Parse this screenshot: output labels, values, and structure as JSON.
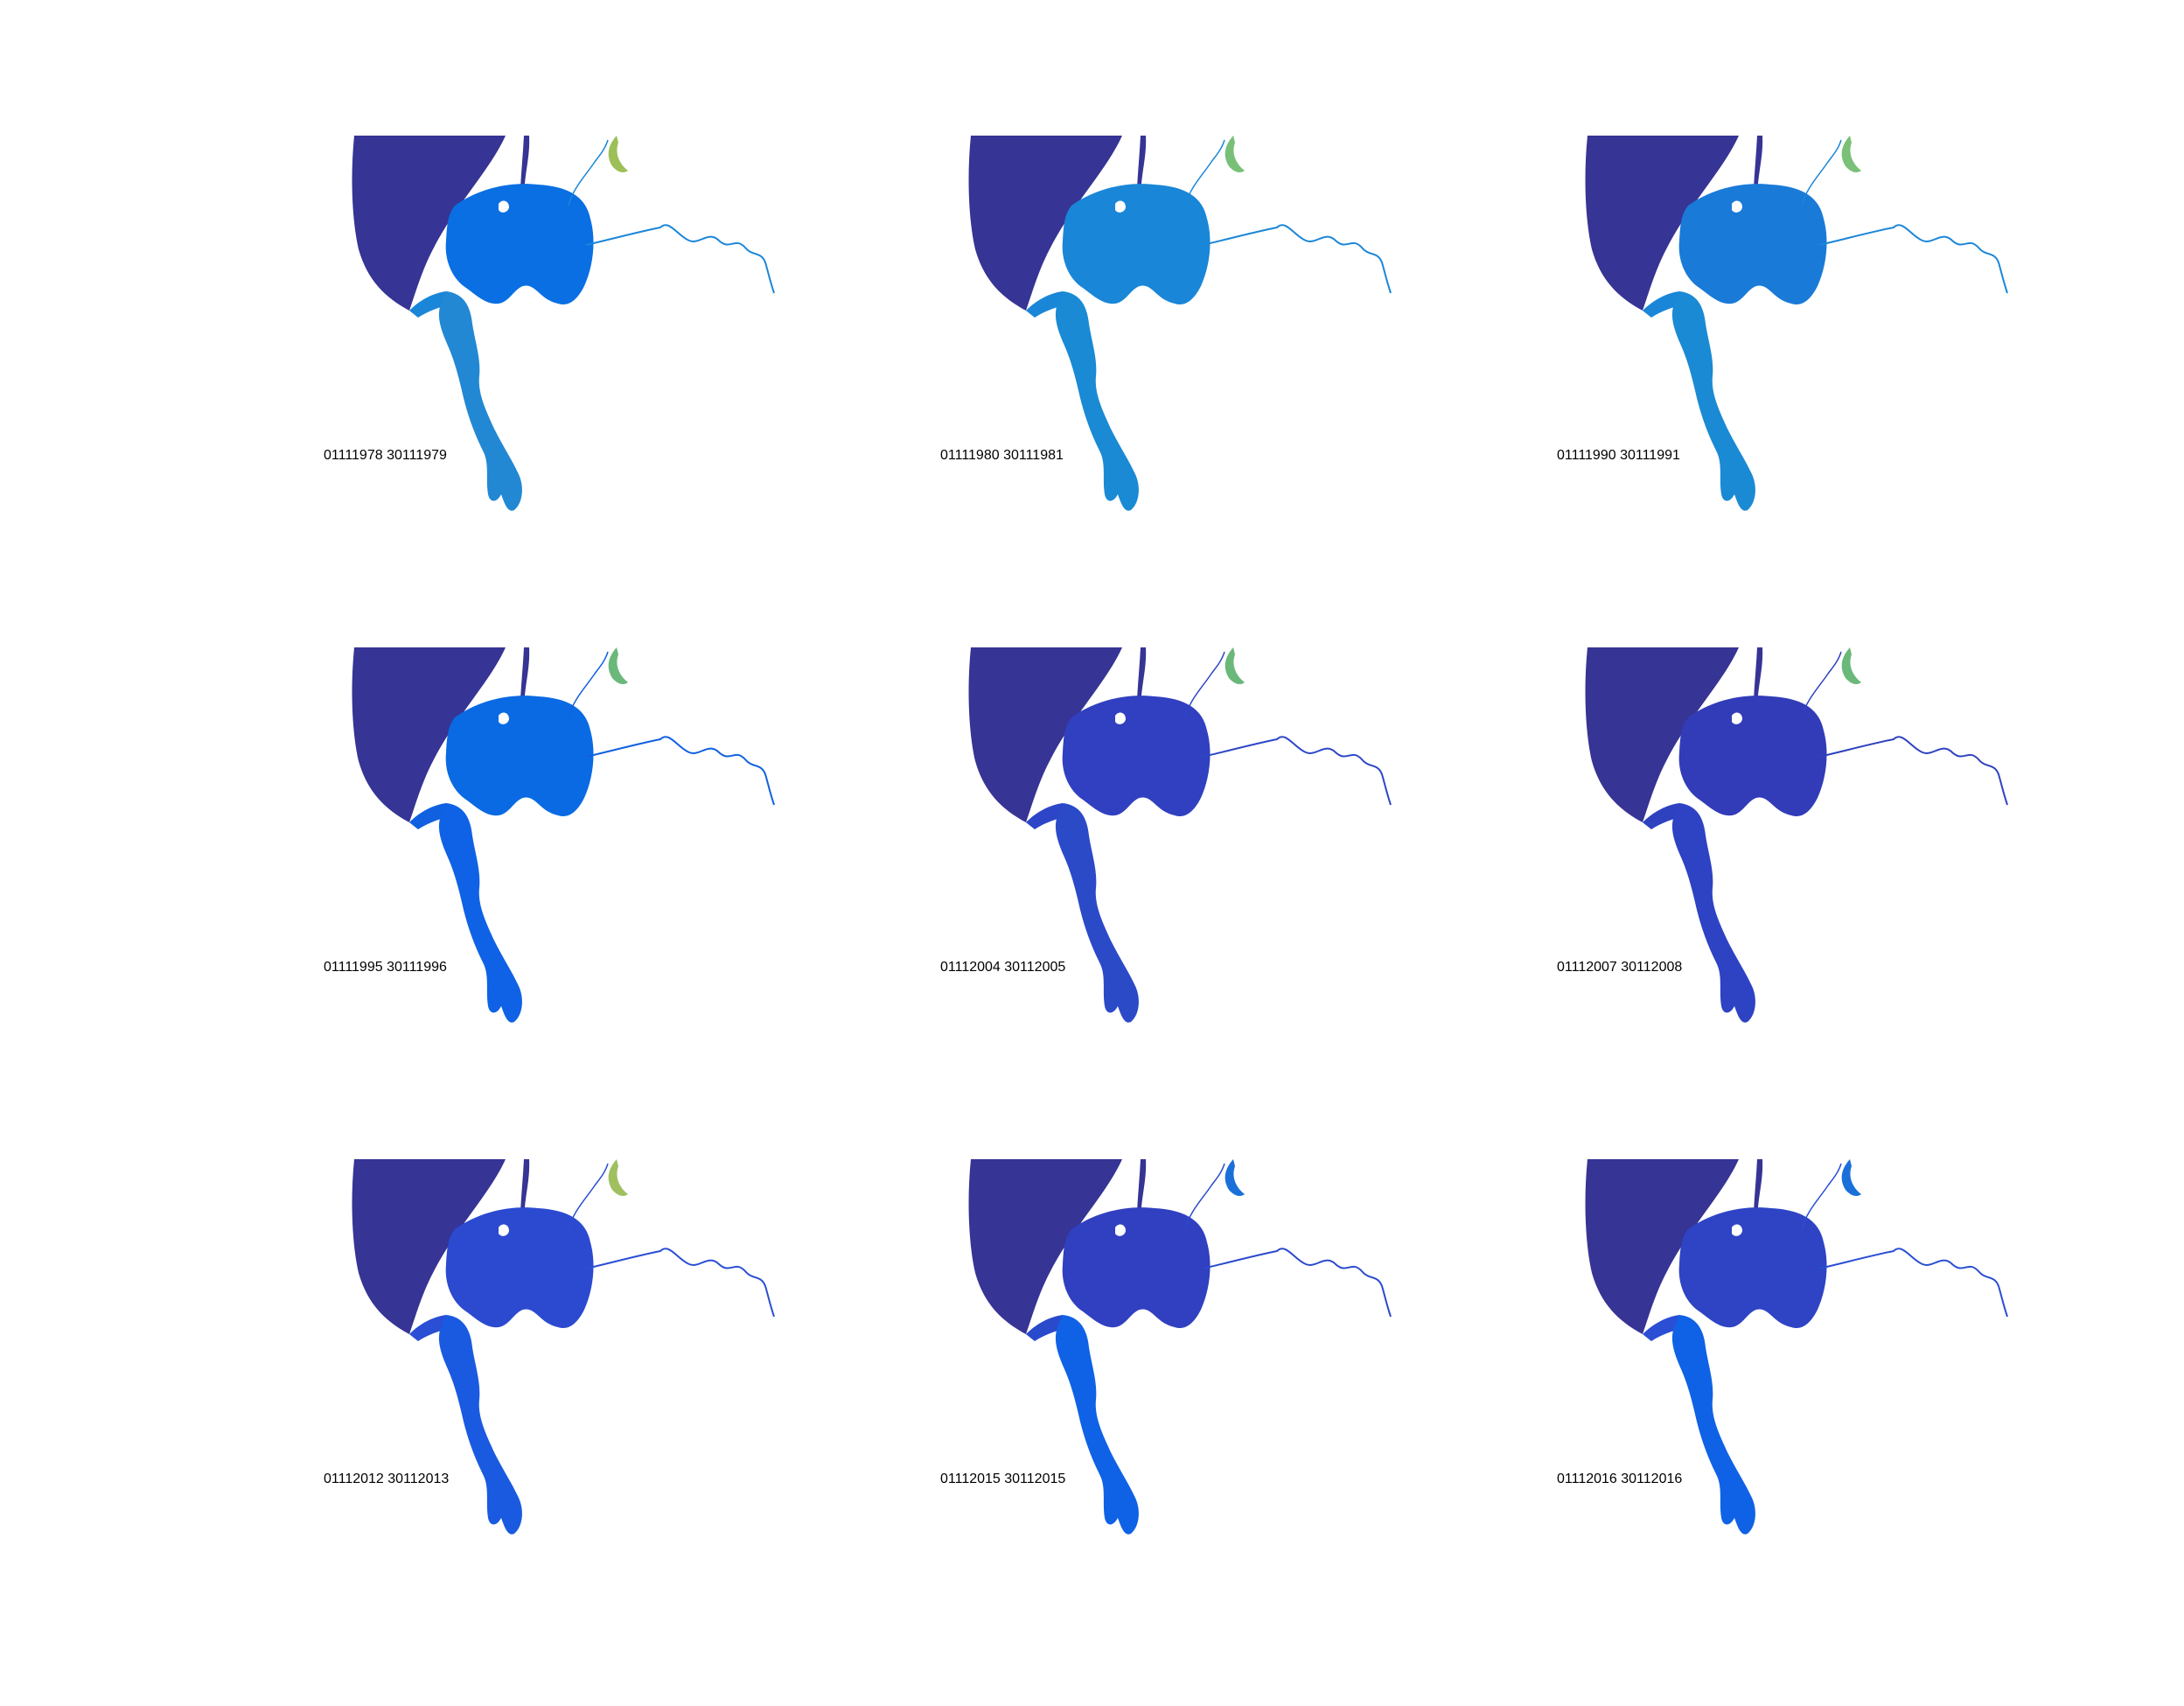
{
  "panels": [
    {
      "label": "01111978 30111979",
      "colors": {
        "sea": "#363494",
        "lake": "#0a6fe3",
        "channel": "#1a86d8",
        "lower": "#2288d4",
        "small": "#9cc057"
      }
    },
    {
      "label": "01111980 30111981",
      "colors": {
        "sea": "#363494",
        "lake": "#1a86d8",
        "channel": "#1a86d8",
        "lower": "#1a8ad4",
        "small": "#78c078"
      }
    },
    {
      "label": "01111990 30111991",
      "colors": {
        "sea": "#363494",
        "lake": "#1a7ad8",
        "channel": "#1a86d8",
        "lower": "#1a8ad4",
        "small": "#7ac078"
      }
    },
    {
      "label": "01111995 30111996",
      "colors": {
        "sea": "#363494",
        "lake": "#0a6ae3",
        "channel": "#1060e0",
        "lower": "#0f62e5",
        "small": "#6ab87a"
      }
    },
    {
      "label": "01112004 30112005",
      "colors": {
        "sea": "#363494",
        "lake": "#3040c0",
        "channel": "#2d46c8",
        "lower": "#2b4ac8",
        "small": "#6ab87a"
      }
    },
    {
      "label": "01112007 30112008",
      "colors": {
        "sea": "#363494",
        "lake": "#323cb8",
        "channel": "#2e42c0",
        "lower": "#2e42c4",
        "small": "#6ab87a"
      }
    },
    {
      "label": "01112012 30112013",
      "colors": {
        "sea": "#363494",
        "lake": "#2b4ad0",
        "channel": "#2a4ed4",
        "lower": "#1a5ae0",
        "small": "#a0c060"
      }
    },
    {
      "label": "01112015 30112015",
      "colors": {
        "sea": "#363494",
        "lake": "#3040c0",
        "channel": "#2a4acc",
        "lower": "#0f62e5",
        "small": "#1a70d8"
      }
    },
    {
      "label": "01112016 30112016",
      "colors": {
        "sea": "#363494",
        "lake": "#2e44c4",
        "channel": "#2a4ed4",
        "lower": "#0f62e5",
        "small": "#1a70d8"
      }
    }
  ]
}
